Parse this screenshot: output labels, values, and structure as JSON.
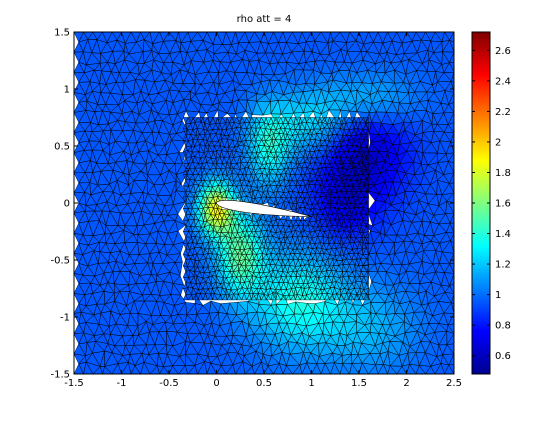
{
  "chart_data": {
    "type": "heatmap",
    "title": "rho att = 4",
    "xlabel": "",
    "ylabel": "",
    "xlim": [
      -1.5,
      2.5
    ],
    "ylim": [
      -1.5,
      1.5
    ],
    "x_ticks": [
      -1.5,
      -1,
      -0.5,
      0,
      0.5,
      1,
      1.5,
      2,
      2.5
    ],
    "x_tick_labels": [
      "-1.5",
      "-1",
      "-0.5",
      "0",
      "0.5",
      "1",
      "1.5",
      "2",
      "2.5"
    ],
    "y_ticks": [
      -1.5,
      -1,
      -0.5,
      0,
      0.5,
      1,
      1.5
    ],
    "y_tick_labels": [
      "-1.5",
      "-1",
      "-0.5",
      "0",
      "0.5",
      "1",
      "1.5"
    ],
    "colorbar": {
      "range": [
        0.48,
        2.72
      ],
      "ticks": [
        0.6,
        0.8,
        1,
        1.2,
        1.4,
        1.6,
        1.8,
        2,
        2.2,
        2.4,
        2.6
      ],
      "tick_labels": [
        "0.6",
        "0.8",
        "1",
        "1.2",
        "1.4",
        "1.6",
        "1.8",
        "2",
        "2.2",
        "2.4",
        "2.6"
      ],
      "colormap": "jet"
    },
    "airfoil": {
      "leading_edge": [
        0,
        0
      ],
      "trailing_edge": [
        1,
        -0.12
      ],
      "thickness": 0.09
    },
    "field": {
      "background_value": 0.95,
      "features": [
        {
          "label": "leading-edge stagnation",
          "x": 0.1,
          "y": -0.15,
          "value": 1.85
        },
        {
          "label": "lower expansion fan",
          "x": 0.7,
          "y": -0.75,
          "value": 1.35
        },
        {
          "label": "upper wake jet",
          "x": 0.6,
          "y": 0.55,
          "value": 1.35
        },
        {
          "label": "low-density region",
          "x": 1.5,
          "y": 0.6,
          "value": 0.62
        }
      ]
    }
  }
}
